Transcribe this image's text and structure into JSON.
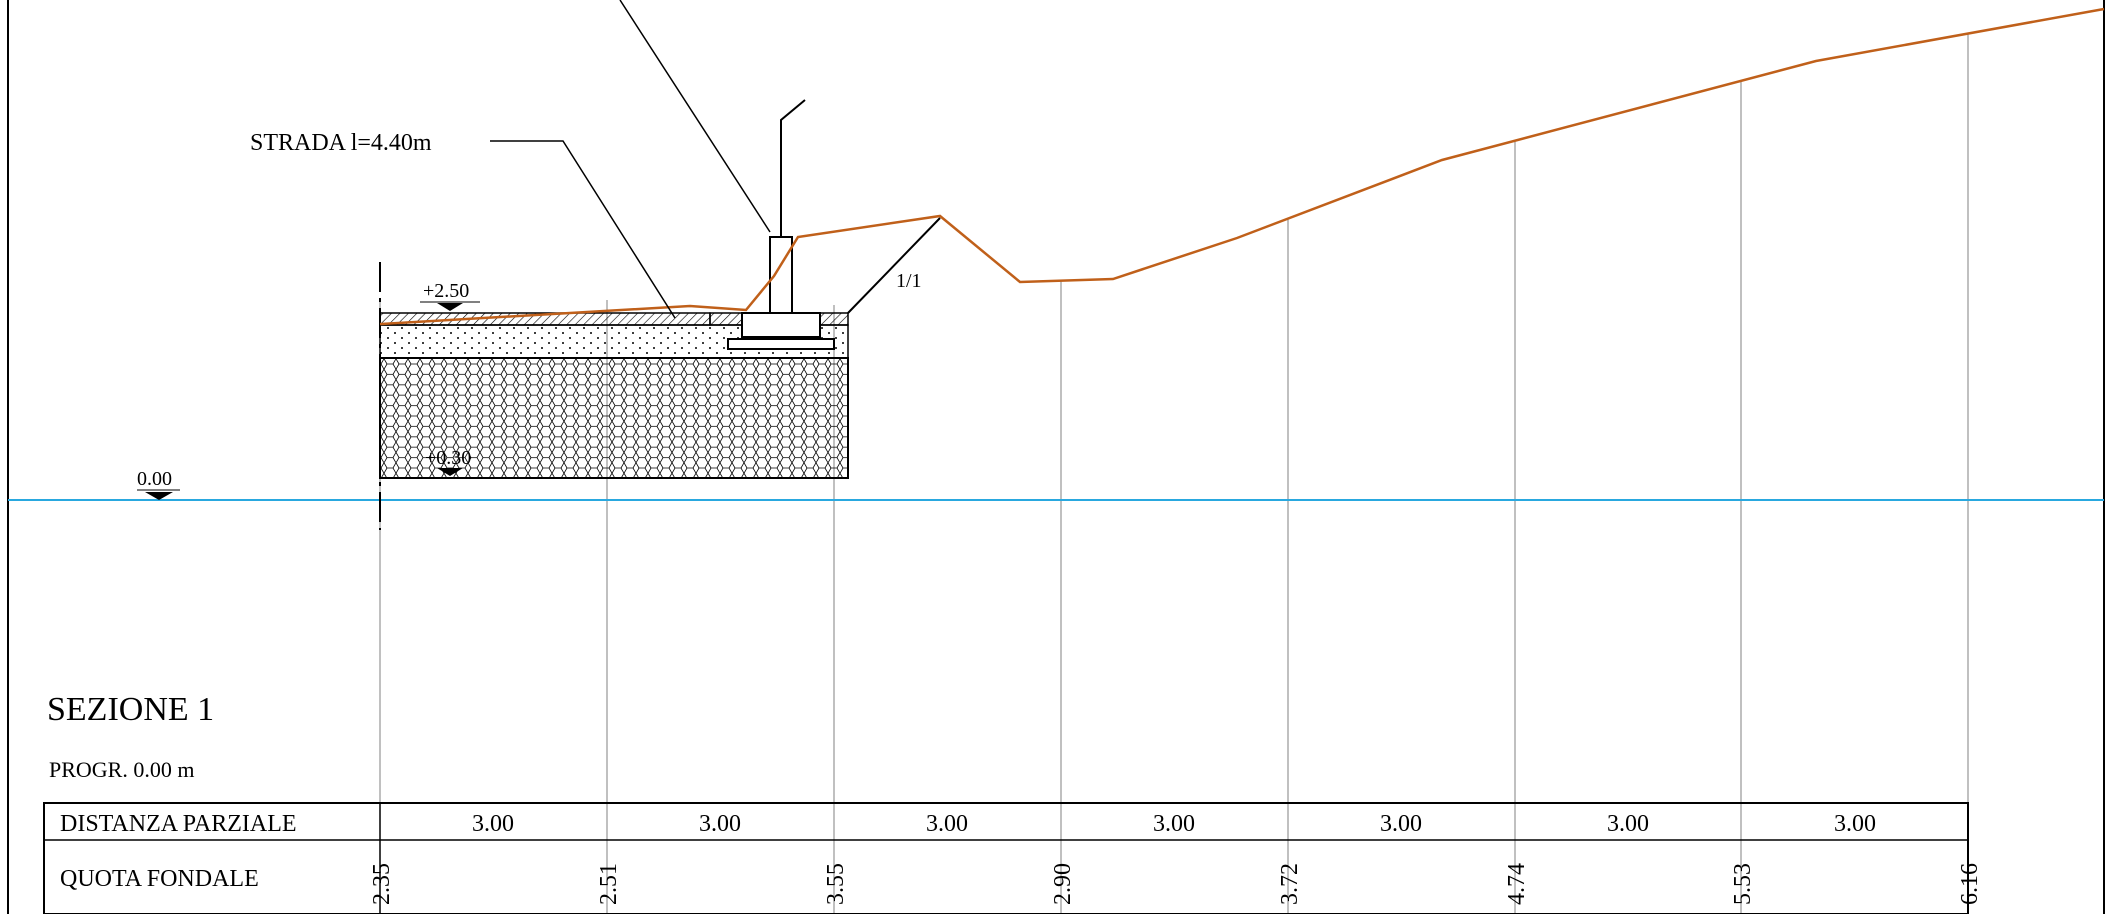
{
  "drawing": {
    "title": "SEZIONE 1",
    "progressive": "PROGR. 0.00 m",
    "road_label": "STRADA  l=4.40m",
    "slope_label": "1/1",
    "levels": {
      "top": "+2.50",
      "bottom": "+0.30",
      "datum": "0.00"
    },
    "colors": {
      "terrain": "#C0601A",
      "water": "#29A8DF",
      "lines": "#000000",
      "grid": "#808080"
    }
  },
  "table": {
    "row1_label": "DISTANZA PARZIALE",
    "row2_label": "QUOTA FONDALE",
    "distances": [
      "3.00",
      "3.00",
      "3.00",
      "3.00",
      "3.00",
      "3.00",
      "3.00"
    ],
    "elevations": [
      "2.35",
      "2.51",
      "3.55",
      "2.90",
      "3.72",
      "4.74",
      "5.53",
      "6.16"
    ]
  }
}
